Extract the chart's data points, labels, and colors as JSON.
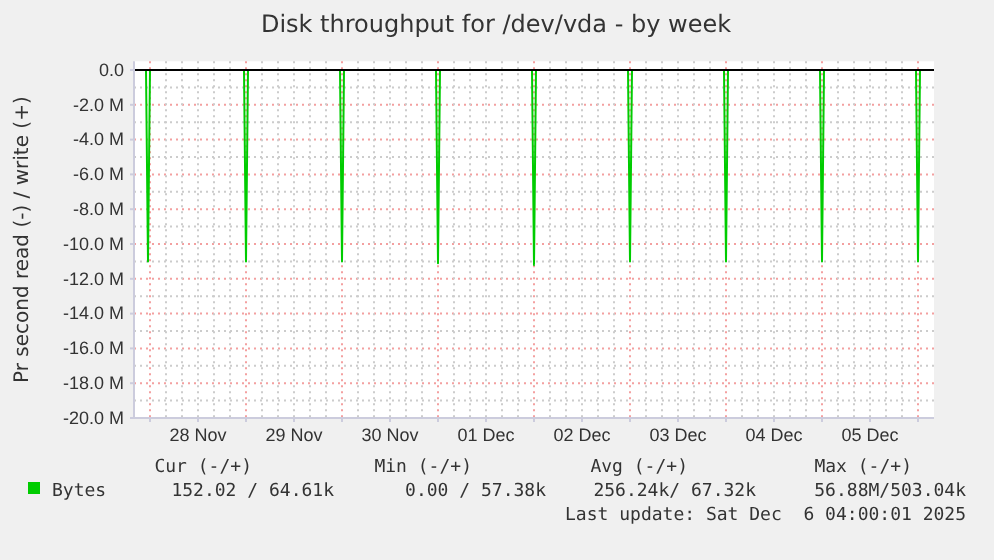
{
  "chart_data": {
    "type": "line",
    "title": "Disk throughput for /dev/vda - by week",
    "ylabel": "Pr second read (-) / write (+)",
    "xlim": [
      "2025-11-27T20:00",
      "2025-12-06T04:00"
    ],
    "xticks": [
      {
        "value": "2025-11-28T00:00",
        "label": null
      },
      {
        "value": "2025-11-28T12:00",
        "label": "28 Nov"
      },
      {
        "value": "2025-11-29T00:00",
        "label": null
      },
      {
        "value": "2025-11-29T12:00",
        "label": "29 Nov"
      },
      {
        "value": "2025-11-30T00:00",
        "label": null
      },
      {
        "value": "2025-11-30T12:00",
        "label": "30 Nov"
      },
      {
        "value": "2025-12-01T00:00",
        "label": null
      },
      {
        "value": "2025-12-01T12:00",
        "label": "01 Dec"
      },
      {
        "value": "2025-12-02T00:00",
        "label": null
      },
      {
        "value": "2025-12-02T12:00",
        "label": "02 Dec"
      },
      {
        "value": "2025-12-03T00:00",
        "label": null
      },
      {
        "value": "2025-12-03T12:00",
        "label": "03 Dec"
      },
      {
        "value": "2025-12-04T00:00",
        "label": null
      },
      {
        "value": "2025-12-04T12:00",
        "label": "04 Dec"
      },
      {
        "value": "2025-12-05T00:00",
        "label": null
      },
      {
        "value": "2025-12-05T12:00",
        "label": "05 Dec"
      },
      {
        "value": "2025-12-06T00:00",
        "label": null
      }
    ],
    "ylim": [
      -20,
      0.5
    ],
    "yticks": [
      {
        "value": 0,
        "label": "0.0"
      },
      {
        "value": -2,
        "label": "-2.0 M"
      },
      {
        "value": -4,
        "label": "-4.0 M"
      },
      {
        "value": -6,
        "label": "-6.0 M"
      },
      {
        "value": -8,
        "label": "-8.0 M"
      },
      {
        "value": -10,
        "label": "-10.0 M"
      },
      {
        "value": -12,
        "label": "-12.0 M"
      },
      {
        "value": -14,
        "label": "-14.0 M"
      },
      {
        "value": -16,
        "label": "-16.0 M"
      },
      {
        "value": -18,
        "label": "-18.0 M"
      },
      {
        "value": -20,
        "label": "-20.0 M"
      }
    ],
    "x": [
      "2025-11-27T20:00",
      "2025-11-27T23:00",
      "2025-11-27T23:30",
      "2025-11-28T00:00",
      "2025-11-28T23:30",
      "2025-11-29T00:00",
      "2025-11-29T00:30",
      "2025-11-29T23:30",
      "2025-11-30T00:00",
      "2025-11-30T00:30",
      "2025-11-30T23:30",
      "2025-12-01T00:00",
      "2025-12-01T00:30",
      "2025-12-01T23:30",
      "2025-12-02T00:00",
      "2025-12-02T00:30",
      "2025-12-02T23:30",
      "2025-12-03T00:00",
      "2025-12-03T00:30",
      "2025-12-03T23:30",
      "2025-12-04T00:00",
      "2025-12-04T00:30",
      "2025-12-04T23:30",
      "2025-12-05T00:00",
      "2025-12-05T00:30",
      "2025-12-05T23:30",
      "2025-12-06T00:00",
      "2025-12-06T00:30",
      "2025-12-06T04:00"
    ],
    "series": [
      {
        "name": "Bytes",
        "color": "#00cc00",
        "values": [
          0,
          0,
          -11,
          0,
          0,
          -11,
          0,
          0,
          -11,
          0,
          0,
          -11.1,
          0,
          0,
          -11.2,
          0,
          0,
          -11,
          0,
          0,
          -11,
          0,
          0,
          -11,
          0,
          0,
          -11,
          0,
          0
        ]
      }
    ],
    "ref_lines": [
      {
        "axis": "y",
        "value": 0,
        "color": "#000000"
      }
    ],
    "grid": true,
    "legend": "bottom",
    "annotations": [
      "Cur (-/+)",
      "Min (-/+)",
      "Avg (-/+)",
      "Max (-/+)",
      "152.02 / 64.61k",
      "0.00 / 57.38k",
      "256.24k/ 67.32k",
      "56.88M/503.04k",
      "Last update: Sat Dec  6 04:00:01 2025"
    ]
  }
}
